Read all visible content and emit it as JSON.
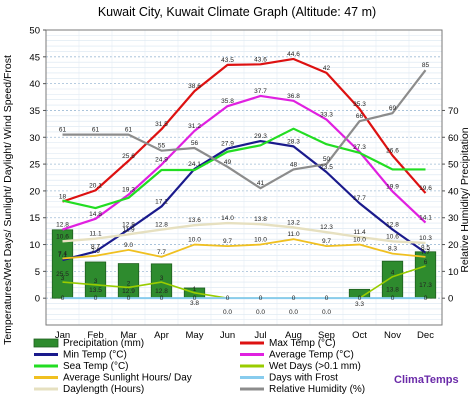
{
  "chart_data": {
    "type": "line",
    "title": "Kuwait City, Kuwait Climate Graph (Altitude: 47 m)",
    "ylabel_left": "Temperatures/Wet Days/ Sunlight/ Daylight/ Wind Speed/Frost",
    "ylabel_right": "Relative Humidity/ Precipitation",
    "categories": [
      "Jan",
      "Feb",
      "Mar",
      "Apr",
      "May",
      "Jun",
      "Jul",
      "Aug",
      "Sep",
      "Oct",
      "Nov",
      "Dec"
    ],
    "yticks_left": [
      0,
      5,
      10,
      15,
      20,
      25,
      30,
      35,
      40,
      45,
      50
    ],
    "ylim_left": [
      -5,
      50
    ],
    "yticks_right": [
      0,
      10,
      20,
      30,
      40,
      50,
      60,
      70
    ],
    "ylim_right": [
      -10,
      100
    ],
    "grid": true,
    "legend_position": "bottom",
    "brand": "ClimaTemps",
    "series": [
      {
        "name": "Precipitation (mm)",
        "kind": "bar",
        "axis": "right",
        "color": "#2e8b2e",
        "values": [
          25.5,
          13.5,
          12.9,
          12.8,
          3.8,
          0.0,
          0.0,
          0.0,
          0.0,
          3.3,
          13.8,
          17.3
        ]
      },
      {
        "name": "Max Temp (°C)",
        "kind": "line",
        "axis": "left",
        "color": "#dd1111",
        "values": [
          18,
          20.1,
          25.6,
          31.5,
          38.6,
          43.5,
          43.6,
          44.6,
          42,
          35.3,
          26.6,
          19.6
        ]
      },
      {
        "name": "Min Temp (°C)",
        "kind": "line",
        "axis": "left",
        "color": "#1a1a8c",
        "values": [
          7.1,
          8.7,
          12.8,
          17.1,
          24.1,
          27.9,
          29.3,
          28.3,
          23.5,
          17.7,
          12.8,
          8.5
        ]
      },
      {
        "name": "Average Temp (°C)",
        "kind": "line",
        "axis": "left",
        "color": "#e020e0",
        "values": [
          12.8,
          14.8,
          19.3,
          24.9,
          31.2,
          35.8,
          37.7,
          36.8,
          33.3,
          27.3,
          19.9,
          14.1
        ]
      },
      {
        "name": "Sea Temp (°C)",
        "kind": "line",
        "axis": "left",
        "color": "#22dd22",
        "values": [
          18.2,
          16.8,
          18.7,
          23.9,
          23.9,
          27.3,
          28.5,
          31.6,
          28.7,
          27.1,
          24.0,
          24.0
        ]
      },
      {
        "name": "Wet Days (>0.1 mm)",
        "kind": "line",
        "axis": "left",
        "color": "#99cc00",
        "values": [
          3,
          2.5,
          2,
          3,
          1,
          0,
          0,
          0,
          0,
          0,
          4,
          6
        ]
      },
      {
        "name": "Average Sunlight Hours/ Day",
        "kind": "line",
        "axis": "left",
        "color": "#f0c020",
        "values": [
          7.4,
          7.9,
          9.0,
          7.7,
          10.0,
          9.7,
          10.0,
          11.0,
          9.7,
          10.0,
          8.3,
          7.7
        ]
      },
      {
        "name": "Days with Frost",
        "kind": "line",
        "axis": "left",
        "color": "#88ccee",
        "values": [
          0,
          0,
          0,
          0,
          0,
          0,
          0,
          0,
          0,
          0,
          0,
          0
        ]
      },
      {
        "name": "Daylength (Hours)",
        "kind": "line",
        "axis": "left",
        "color": "#e6e0c0",
        "values": [
          10.6,
          11.1,
          11.9,
          12.8,
          13.6,
          14.0,
          13.8,
          13.2,
          12.3,
          11.4,
          10.6,
          10.3
        ]
      },
      {
        "name": "Relative Humidity (%)",
        "kind": "line",
        "axis": "right",
        "color": "#8c8c8c",
        "values": [
          61,
          61,
          61,
          55,
          56,
          49,
          41,
          48,
          50,
          66,
          69,
          85
        ]
      }
    ],
    "labels": {
      "precip": [
        "25.5",
        "13.5",
        "12.9",
        "12.8",
        "3.8",
        "0.0",
        "0.0",
        "0.0",
        "0.0",
        "3.3",
        "13.8",
        "17.3"
      ],
      "max": [
        "18",
        "20.1",
        "25.6",
        "31.5",
        "38.6",
        "43.5",
        "43.6",
        "44.6",
        "42",
        "35.3",
        "26.6",
        "19.6"
      ],
      "min": [
        "7.1",
        "8.7",
        "12.8",
        "17.1",
        "24.1",
        "27.9",
        "29.3",
        "28.3",
        "23.5",
        "17.7",
        "12.8",
        "8.5"
      ],
      "avg": [
        "12.8",
        "14.8",
        "19.3",
        "24.9",
        "31.2",
        "35.8",
        "37.7",
        "36.8",
        "33.3",
        "27.3",
        "19.9",
        "14.1"
      ],
      "sun": [
        "7.4",
        "7.9",
        "9.0",
        "7.7",
        "10.0",
        "9.7",
        "10.0",
        "11.0",
        "9.7",
        "10.0",
        "8.3",
        "7.7"
      ],
      "day": [
        "10.6",
        "11.1",
        "11.9",
        "12.8",
        "13.6",
        "14.0",
        "13.8",
        "13.2",
        "12.3",
        "11.4",
        "10.6",
        "10.3"
      ],
      "frost": [
        "0",
        "0",
        "0",
        "0",
        "0",
        "0",
        "0",
        "0",
        "0",
        "0",
        "0",
        "0"
      ],
      "wet": [
        "3",
        "3",
        "2",
        "3",
        "1",
        "",
        "",
        "",
        "",
        "",
        "4",
        "6"
      ],
      "rh": [
        "61",
        "61",
        "61",
        "55",
        "56",
        "49",
        "41",
        "48",
        "50",
        "66",
        "69",
        "85"
      ]
    }
  }
}
